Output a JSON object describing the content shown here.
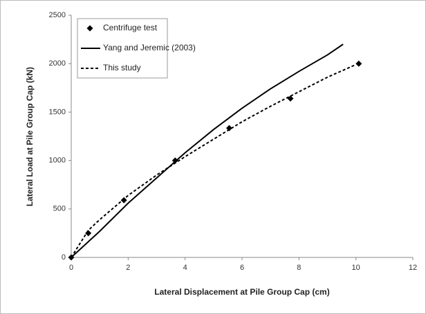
{
  "chart_data": {
    "type": "line",
    "xlabel": "Lateral Displacement at Pile Group Cap (cm)",
    "ylabel": "Lateral Load at Pile Group Cap (kN)",
    "xlim": [
      0,
      12
    ],
    "xticks": [
      0,
      2,
      4,
      6,
      8,
      10,
      12
    ],
    "ylim": [
      0,
      2500
    ],
    "yticks": [
      0,
      500,
      1000,
      1500,
      2000,
      2500
    ],
    "grid": false,
    "legend": "upper left",
    "series": [
      {
        "name": "Centrifuge test",
        "color": "#000000",
        "mode": "markers",
        "x": [
          0,
          0.6,
          1.85,
          3.65,
          5.55,
          7.7,
          10.1
        ],
        "values": [
          0,
          250,
          590,
          1000,
          1335,
          1640,
          2000
        ]
      },
      {
        "name": "Yang and Jeremic (2003)",
        "color": "#000000",
        "mode": "line",
        "dash": "solid",
        "x": [
          0,
          1,
          2,
          3,
          4,
          5,
          6,
          7,
          8,
          9,
          9.55
        ],
        "values": [
          0,
          270,
          560,
          820,
          1080,
          1320,
          1540,
          1740,
          1920,
          2090,
          2200
        ]
      },
      {
        "name": "This study",
        "color": "#000000",
        "mode": "line",
        "dash": "dashed",
        "x": [
          0,
          0.6,
          1,
          2,
          3,
          4,
          5,
          6,
          7,
          8,
          9,
          10
        ],
        "values": [
          0,
          280,
          390,
          640,
          850,
          1040,
          1220,
          1400,
          1560,
          1710,
          1860,
          1990
        ]
      }
    ]
  }
}
